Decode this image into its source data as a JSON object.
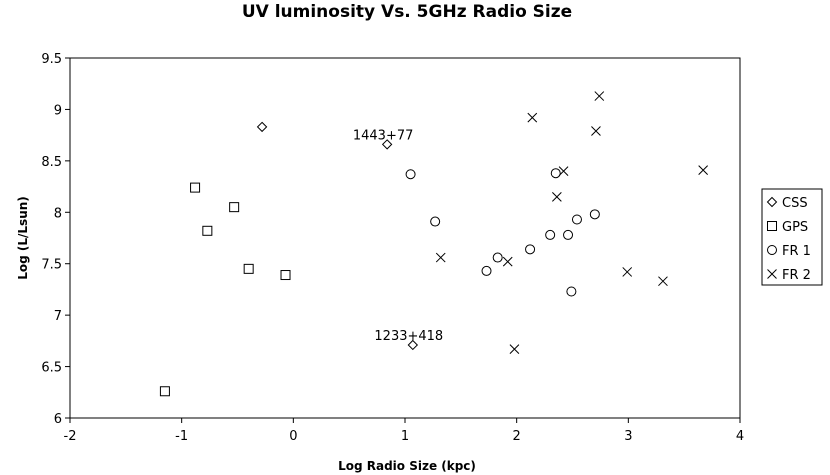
{
  "chart_data": {
    "type": "scatter",
    "title": "UV luminosity Vs. 5GHz Radio Size",
    "xlabel": "Log Radio Size (kpc)",
    "ylabel": "Log (L/Lsun)",
    "xlim": [
      -2,
      4
    ],
    "ylim": [
      6,
      9.5
    ],
    "xticks": [
      "-2",
      "-1",
      "0",
      "1",
      "2",
      "3",
      "4"
    ],
    "yticks": [
      "6",
      "6.5",
      "7",
      "7.5",
      "8",
      "8.5",
      "9",
      "9.5"
    ],
    "grid": false,
    "legend_position": "right",
    "series": [
      {
        "name": "CSS",
        "marker": "diamond",
        "points": [
          [
            -0.28,
            8.83
          ],
          [
            0.84,
            8.66
          ],
          [
            1.07,
            6.71
          ]
        ]
      },
      {
        "name": "GPS",
        "marker": "square",
        "points": [
          [
            -1.15,
            6.26
          ],
          [
            -0.88,
            8.24
          ],
          [
            -0.77,
            7.82
          ],
          [
            -0.53,
            8.05
          ],
          [
            -0.4,
            7.45
          ],
          [
            -0.07,
            7.39
          ]
        ]
      },
      {
        "name": "FR 1",
        "marker": "circle",
        "points": [
          [
            1.05,
            8.37
          ],
          [
            1.27,
            7.91
          ],
          [
            1.73,
            7.43
          ],
          [
            1.83,
            7.56
          ],
          [
            2.12,
            7.64
          ],
          [
            2.3,
            7.78
          ],
          [
            2.35,
            8.38
          ],
          [
            2.46,
            7.78
          ],
          [
            2.49,
            7.23
          ],
          [
            2.54,
            7.93
          ],
          [
            2.7,
            7.98
          ]
        ]
      },
      {
        "name": "FR 2",
        "marker": "x",
        "points": [
          [
            1.32,
            7.56
          ],
          [
            1.92,
            7.52
          ],
          [
            1.98,
            6.67
          ],
          [
            2.14,
            8.92
          ],
          [
            2.36,
            8.15
          ],
          [
            2.42,
            8.4
          ],
          [
            2.71,
            8.79
          ],
          [
            2.74,
            9.13
          ],
          [
            2.99,
            7.42
          ],
          [
            3.31,
            7.33
          ],
          [
            3.67,
            8.41
          ]
        ]
      }
    ],
    "annotations": [
      {
        "text": "1443+77",
        "x": 0.84,
        "y": 8.66
      },
      {
        "text": "1233+418",
        "x": 1.07,
        "y": 6.71
      }
    ]
  }
}
